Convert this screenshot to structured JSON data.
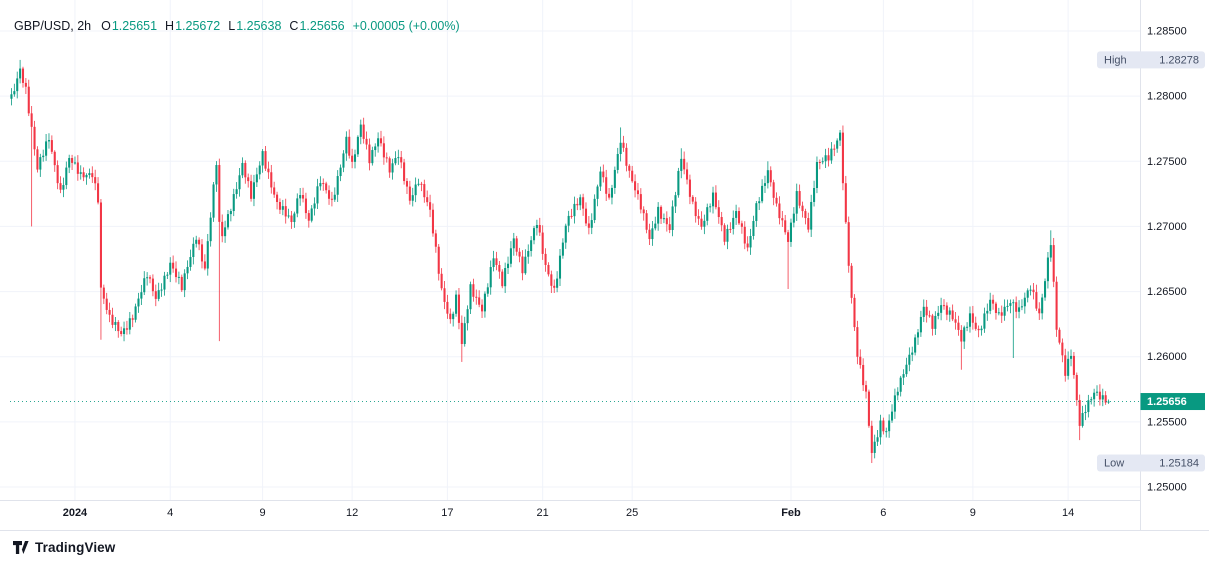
{
  "colors": {
    "up": "#089981",
    "down": "#f23645",
    "text": "#131722",
    "muted": "#787b86",
    "grid": "#f0f3fa",
    "axis_border": "#e0e3eb",
    "badge_bg": "#e4e8f3",
    "badge_text": "#455067",
    "price_badge_bg": "#089981",
    "price_badge_text": "#ffffff"
  },
  "legend": {
    "symbol": "GBP/USD, 2h",
    "fields": [
      {
        "label": "O",
        "value": "1.25651"
      },
      {
        "label": "H",
        "value": "1.25672"
      },
      {
        "label": "L",
        "value": "1.25638"
      },
      {
        "label": "C",
        "value": "1.25656"
      }
    ],
    "change": "+0.00005 (+0.00%)"
  },
  "footer": {
    "brand": "TradingView"
  },
  "chart_data": {
    "type": "candlestick",
    "title": "GBP/USD, 2h",
    "symbol": "GBP/USD",
    "interval": "2h",
    "legend_ohlc": {
      "open": 1.25651,
      "high": 1.25672,
      "low": 1.25638,
      "close": 1.25656,
      "change": "+0.00005 (+0.00%)"
    },
    "y_axis": {
      "min": 1.25,
      "max": 1.285,
      "ticks": [
        "1.28500",
        "1.28000",
        "1.27500",
        "1.27000",
        "1.26500",
        "1.26000",
        "1.25500",
        "1.25000"
      ],
      "tick_values": [
        1.285,
        1.28,
        1.275,
        1.27,
        1.265,
        1.26,
        1.255,
        1.25
      ]
    },
    "x_axis": {
      "ticks": [
        {
          "label": "2024",
          "i": 22,
          "major": true
        },
        {
          "label": "4",
          "i": 55
        },
        {
          "label": "9",
          "i": 87
        },
        {
          "label": "12",
          "i": 118
        },
        {
          "label": "17",
          "i": 151
        },
        {
          "label": "21",
          "i": 184
        },
        {
          "label": "25",
          "i": 215
        },
        {
          "label": "Feb",
          "i": 270,
          "major": true
        },
        {
          "label": "6",
          "i": 302
        },
        {
          "label": "9",
          "i": 333
        },
        {
          "label": "14",
          "i": 366
        }
      ]
    },
    "high_label": {
      "text": "High",
      "value": "1.28278",
      "price": 1.28278
    },
    "low_label": {
      "text": "Low",
      "value": "1.25184",
      "price": 1.25184
    },
    "last_price": {
      "value": "1.25656",
      "price": 1.25656
    },
    "candles_total": 381,
    "waypoints": [
      [
        0,
        1.2798
      ],
      [
        3,
        1.2822
      ],
      [
        5,
        1.2806
      ],
      [
        9,
        1.2743
      ],
      [
        13,
        1.2768
      ],
      [
        17,
        1.2727
      ],
      [
        20,
        1.2752
      ],
      [
        24,
        1.2738
      ],
      [
        28,
        1.2742
      ],
      [
        30,
        1.2722
      ],
      [
        31,
        1.2652
      ],
      [
        34,
        1.2628
      ],
      [
        38,
        1.2618
      ],
      [
        42,
        1.2632
      ],
      [
        47,
        1.2662
      ],
      [
        50,
        1.2645
      ],
      [
        55,
        1.2672
      ],
      [
        59,
        1.2652
      ],
      [
        64,
        1.2694
      ],
      [
        67,
        1.2668
      ],
      [
        71,
        1.2748
      ],
      [
        72,
        1.27
      ],
      [
        73,
        1.2692
      ],
      [
        76,
        1.2716
      ],
      [
        80,
        1.2748
      ],
      [
        83,
        1.2722
      ],
      [
        87,
        1.2756
      ],
      [
        92,
        1.2718
      ],
      [
        97,
        1.2702
      ],
      [
        100,
        1.2728
      ],
      [
        103,
        1.2706
      ],
      [
        107,
        1.2734
      ],
      [
        111,
        1.2718
      ],
      [
        116,
        1.2768
      ],
      [
        118,
        1.2746
      ],
      [
        121,
        1.2776
      ],
      [
        124,
        1.2752
      ],
      [
        127,
        1.277
      ],
      [
        131,
        1.2742
      ],
      [
        134,
        1.2754
      ],
      [
        138,
        1.2722
      ],
      [
        141,
        1.2736
      ],
      [
        145,
        1.271
      ],
      [
        149,
        1.2652
      ],
      [
        152,
        1.2628
      ],
      [
        154,
        1.2645
      ],
      [
        156,
        1.2608
      ],
      [
        159,
        1.2652
      ],
      [
        163,
        1.2638
      ],
      [
        167,
        1.2676
      ],
      [
        170,
        1.2655
      ],
      [
        174,
        1.2692
      ],
      [
        177,
        1.2668
      ],
      [
        182,
        1.2702
      ],
      [
        185,
        1.267
      ],
      [
        188,
        1.2652
      ],
      [
        192,
        1.27
      ],
      [
        197,
        1.2722
      ],
      [
        200,
        1.2698
      ],
      [
        204,
        1.2742
      ],
      [
        207,
        1.2718
      ],
      [
        211,
        1.2768
      ],
      [
        214,
        1.2742
      ],
      [
        218,
        1.2714
      ],
      [
        221,
        1.269
      ],
      [
        224,
        1.2714
      ],
      [
        228,
        1.2698
      ],
      [
        232,
        1.2752
      ],
      [
        236,
        1.2718
      ],
      [
        239,
        1.27
      ],
      [
        243,
        1.2722
      ],
      [
        247,
        1.2692
      ],
      [
        251,
        1.2712
      ],
      [
        255,
        1.268
      ],
      [
        258,
        1.2716
      ],
      [
        262,
        1.2744
      ],
      [
        265,
        1.2714
      ],
      [
        269,
        1.2688
      ],
      [
        272,
        1.2726
      ],
      [
        276,
        1.27
      ],
      [
        279,
        1.2746
      ],
      [
        283,
        1.2754
      ],
      [
        287,
        1.2772
      ],
      [
        289,
        1.27
      ],
      [
        291,
        1.2642
      ],
      [
        293,
        1.26
      ],
      [
        296,
        1.2572
      ],
      [
        298,
        1.2528
      ],
      [
        301,
        1.2548
      ],
      [
        303,
        1.254
      ],
      [
        307,
        1.2576
      ],
      [
        310,
        1.2596
      ],
      [
        313,
        1.2612
      ],
      [
        316,
        1.2636
      ],
      [
        319,
        1.2624
      ],
      [
        322,
        1.2642
      ],
      [
        326,
        1.263
      ],
      [
        329,
        1.2612
      ],
      [
        332,
        1.2632
      ],
      [
        335,
        1.262
      ],
      [
        339,
        1.2642
      ],
      [
        342,
        1.263
      ],
      [
        346,
        1.2644
      ],
      [
        349,
        1.2636
      ],
      [
        353,
        1.2652
      ],
      [
        356,
        1.2632
      ],
      [
        360,
        1.269
      ],
      [
        362,
        1.2622
      ],
      [
        365,
        1.2586
      ],
      [
        367,
        1.2602
      ],
      [
        370,
        1.255
      ],
      [
        372,
        1.2562
      ],
      [
        375,
        1.2572
      ],
      [
        378,
        1.2566
      ],
      [
        380,
        1.25656
      ]
    ],
    "forced": [
      {
        "i": 3,
        "high": 1.28278
      },
      {
        "i": 7,
        "low": 1.27
      },
      {
        "i": 31,
        "low": 1.2613
      },
      {
        "i": 72,
        "low": 1.2612
      },
      {
        "i": 116,
        "high": 1.2773
      },
      {
        "i": 121,
        "high": 1.2782
      },
      {
        "i": 156,
        "low": 1.2596
      },
      {
        "i": 211,
        "high": 1.2776
      },
      {
        "i": 232,
        "high": 1.276
      },
      {
        "i": 262,
        "high": 1.275
      },
      {
        "i": 269,
        "low": 1.2652
      },
      {
        "i": 287,
        "high": 1.2774
      },
      {
        "i": 298,
        "low": 1.25184
      },
      {
        "i": 329,
        "low": 1.259
      },
      {
        "i": 347,
        "low": 1.2599
      },
      {
        "i": 360,
        "high": 1.2697
      },
      {
        "i": 370,
        "low": 1.2536
      },
      {
        "i": 380,
        "open": 1.25651,
        "high": 1.25672,
        "low": 1.25638,
        "close": 1.25656
      }
    ]
  }
}
